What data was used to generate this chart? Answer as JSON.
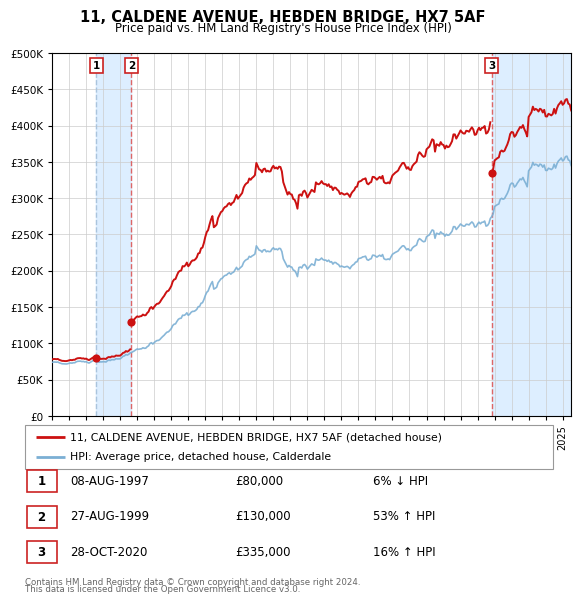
{
  "title": "11, CALDENE AVENUE, HEBDEN BRIDGE, HX7 5AF",
  "subtitle": "Price paid vs. HM Land Registry's House Price Index (HPI)",
  "legend_line1": "11, CALDENE AVENUE, HEBDEN BRIDGE, HX7 5AF (detached house)",
  "legend_line2": "HPI: Average price, detached house, Calderdale",
  "transactions": [
    {
      "num": 1,
      "date": "08-AUG-1997",
      "price": 80000,
      "pct": "6%",
      "dir": "↓",
      "year": 1997.6
    },
    {
      "num": 2,
      "date": "27-AUG-1999",
      "price": 130000,
      "pct": "53%",
      "dir": "↑",
      "year": 1999.65
    },
    {
      "num": 3,
      "date": "28-OCT-2020",
      "price": 335000,
      "pct": "16%",
      "dir": "↑",
      "year": 2020.82
    }
  ],
  "footer_line1": "Contains HM Land Registry data © Crown copyright and database right 2024.",
  "footer_line2": "This data is licensed under the Open Government Licence v3.0.",
  "hpi_color": "#7bafd4",
  "price_color": "#cc1111",
  "vline1_color": "#aac4dd",
  "vline23_color": "#dd6666",
  "shade_color": "#ddeeff",
  "ylim_max": 500000,
  "ylim_min": 0,
  "xlim_min": 1995.0,
  "xlim_max": 2025.5
}
